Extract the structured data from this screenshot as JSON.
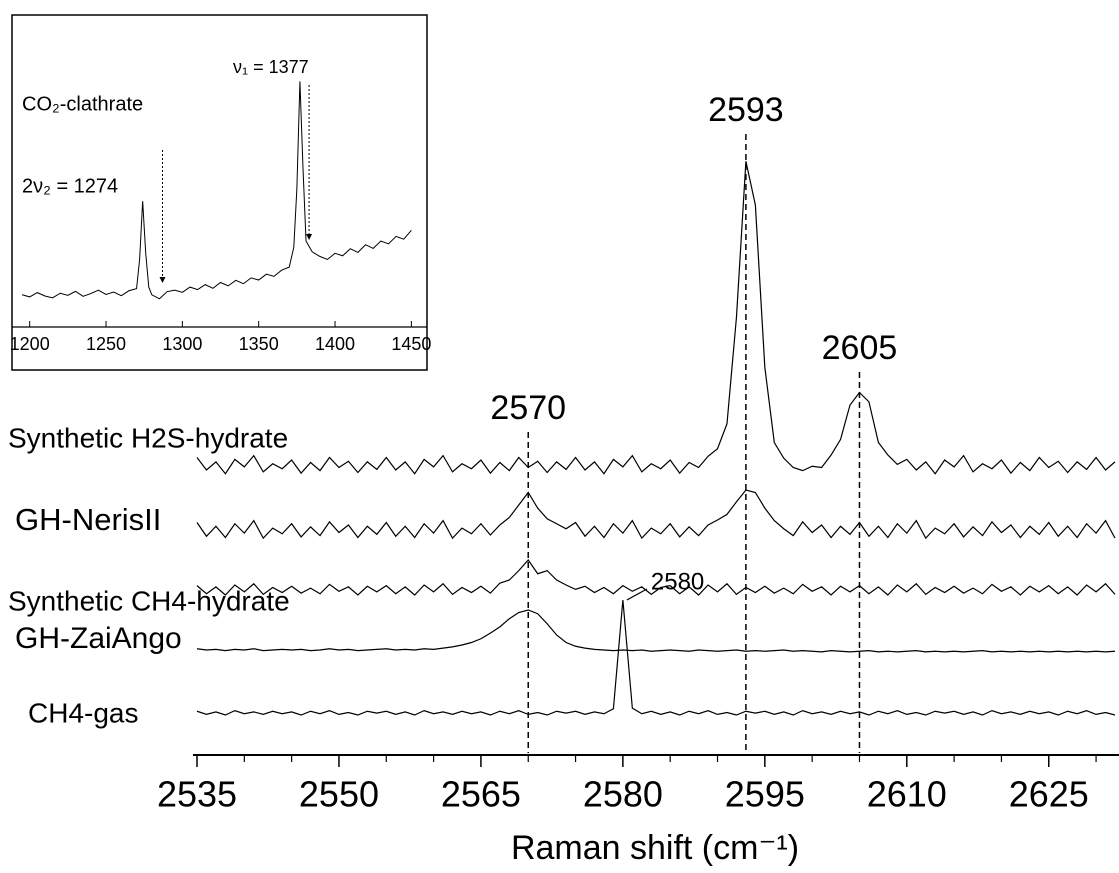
{
  "chart_data": [
    {
      "type": "line",
      "xlabel": "Raman shift (cm⁻¹)",
      "xlim": [
        2535,
        2632
      ],
      "ylim": [
        0,
        100
      ],
      "xticks": [
        2535,
        2550,
        2565,
        2580,
        2595,
        2610,
        2625
      ],
      "xminorticks": [
        2540,
        2545,
        2555,
        2560,
        2570,
        2575,
        2585,
        2590,
        2600,
        2605,
        2615,
        2620,
        2630
      ],
      "x": [
        2535,
        2536,
        2537,
        2538,
        2539,
        2540,
        2541,
        2542,
        2543,
        2544,
        2545,
        2546,
        2547,
        2548,
        2549,
        2550,
        2551,
        2552,
        2553,
        2554,
        2555,
        2556,
        2557,
        2558,
        2559,
        2560,
        2561,
        2562,
        2563,
        2564,
        2565,
        2566,
        2567,
        2568,
        2569,
        2570,
        2571,
        2572,
        2573,
        2574,
        2575,
        2576,
        2577,
        2578,
        2579,
        2580,
        2581,
        2582,
        2583,
        2584,
        2585,
        2586,
        2587,
        2588,
        2589,
        2590,
        2591,
        2592,
        2593,
        2594,
        2595,
        2596,
        2597,
        2598,
        2599,
        2600,
        2601,
        2602,
        2603,
        2604,
        2605,
        2606,
        2607,
        2608,
        2609,
        2610,
        2611,
        2612,
        2613,
        2614,
        2615,
        2616,
        2617,
        2618,
        2619,
        2620,
        2621,
        2622,
        2623,
        2624,
        2625,
        2626,
        2627,
        2628,
        2629,
        2630,
        2631,
        2632
      ],
      "series": [
        {
          "name": "Synthetic H2S-hydrate",
          "color": "#000000",
          "values": [
            47.6,
            45.6,
            46.9,
            45.0,
            47.3,
            46.1,
            47.9,
            45.3,
            46.6,
            45.8,
            47.2,
            45.1,
            46.8,
            45.5,
            47.6,
            46.0,
            47.0,
            45.2,
            46.9,
            45.7,
            47.6,
            45.6,
            46.9,
            45.0,
            47.3,
            46.1,
            47.9,
            45.3,
            46.6,
            45.8,
            47.2,
            45.1,
            46.8,
            45.5,
            47.6,
            46.0,
            47.0,
            45.2,
            46.9,
            45.7,
            47.6,
            45.6,
            46.9,
            45.0,
            47.3,
            46.1,
            47.9,
            45.3,
            46.6,
            45.8,
            47.2,
            45.1,
            46.8,
            46.0,
            47.8,
            49.0,
            53.0,
            70.0,
            95.0,
            88.0,
            62.0,
            50.0,
            47.5,
            46.0,
            45.5,
            46.2,
            46.0,
            48.0,
            50.5,
            56.0,
            58.0,
            56.5,
            50.0,
            48.0,
            46.5,
            47.3,
            45.6,
            46.9,
            45.0,
            47.2,
            46.1,
            47.9,
            45.3,
            46.6,
            45.8,
            47.2,
            45.1,
            46.8,
            45.5,
            47.6,
            46.0,
            47.0,
            45.2,
            46.9,
            45.7,
            47.6,
            45.6,
            46.9
          ]
        },
        {
          "name": "GH-NerisII",
          "color": "#000000",
          "values": [
            37.2,
            35.0,
            36.6,
            34.8,
            37.0,
            35.5,
            37.5,
            34.7,
            36.3,
            35.4,
            37.0,
            34.9,
            36.5,
            35.1,
            37.3,
            35.6,
            36.8,
            34.8,
            36.6,
            35.3,
            37.2,
            35.0,
            36.6,
            34.8,
            37.0,
            35.5,
            37.5,
            34.7,
            36.3,
            35.4,
            37.0,
            35.2,
            36.8,
            38.0,
            40.0,
            42.0,
            39.5,
            37.8,
            37.0,
            36.2,
            37.2,
            35.0,
            36.6,
            34.8,
            37.0,
            35.5,
            37.5,
            34.7,
            36.3,
            35.4,
            37.0,
            34.9,
            36.5,
            35.1,
            36.8,
            37.6,
            38.5,
            40.5,
            42.4,
            42.0,
            39.5,
            37.5,
            36.2,
            35.1,
            37.3,
            35.6,
            36.8,
            34.8,
            36.6,
            35.3,
            37.2,
            35.0,
            36.6,
            34.8,
            37.0,
            35.5,
            37.5,
            34.7,
            36.3,
            35.4,
            37.0,
            34.9,
            36.5,
            35.1,
            37.3,
            35.6,
            36.8,
            34.8,
            36.6,
            35.3,
            37.2,
            35.0,
            36.6,
            34.8,
            37.0,
            35.5,
            37.5,
            34.7
          ]
        },
        {
          "name": "Synthetic CH4-hydrate",
          "color": "#000000",
          "values": [
            27.1,
            25.8,
            26.9,
            25.6,
            27.2,
            26.1,
            27.4,
            25.7,
            26.8,
            26.0,
            27.0,
            25.9,
            26.7,
            25.8,
            27.3,
            26.2,
            26.9,
            25.6,
            27.0,
            26.1,
            27.1,
            25.8,
            26.9,
            25.6,
            27.2,
            26.1,
            27.4,
            25.7,
            26.8,
            26.0,
            27.0,
            25.9,
            27.5,
            28.0,
            29.5,
            31.2,
            29.0,
            29.5,
            28.0,
            27.2,
            26.5,
            27.0,
            26.0,
            26.8,
            25.8,
            27.1,
            26.2,
            26.9,
            25.7,
            26.8,
            27.1,
            25.8,
            26.9,
            25.6,
            27.2,
            26.1,
            27.4,
            25.7,
            26.8,
            26.0,
            27.0,
            25.9,
            26.7,
            25.8,
            27.3,
            26.2,
            26.9,
            25.6,
            27.0,
            26.1,
            27.1,
            25.8,
            26.9,
            25.6,
            27.2,
            26.1,
            27.4,
            25.7,
            26.8,
            26.0,
            27.0,
            25.9,
            26.7,
            25.8,
            27.3,
            26.2,
            26.9,
            25.6,
            27.0,
            26.1,
            27.1,
            25.8,
            26.9,
            25.6,
            27.2,
            26.1,
            27.4,
            25.7
          ]
        },
        {
          "name": "GH-ZaiAngo",
          "color": "#000000",
          "values": [
            17.0,
            16.8,
            16.9,
            16.7,
            16.9,
            16.8,
            17.0,
            16.7,
            16.8,
            16.9,
            16.8,
            16.9,
            16.7,
            16.8,
            17.0,
            16.8,
            16.9,
            16.7,
            16.8,
            16.9,
            17.0,
            16.8,
            16.9,
            16.8,
            17.0,
            16.9,
            17.1,
            17.3,
            17.6,
            18.0,
            18.6,
            19.5,
            20.5,
            21.8,
            22.8,
            23.2,
            22.6,
            21.0,
            19.2,
            18.0,
            17.4,
            17.1,
            16.9,
            16.8,
            16.7,
            16.8,
            16.7,
            16.8,
            16.6,
            16.7,
            16.8,
            16.7,
            16.6,
            16.8,
            16.7,
            16.6,
            16.7,
            16.8,
            16.6,
            16.7,
            16.6,
            16.7,
            16.8,
            16.6,
            16.7,
            16.6,
            16.5,
            16.7,
            16.6,
            16.5,
            16.6,
            16.7,
            16.5,
            16.6,
            16.5,
            16.6,
            16.7,
            16.5,
            16.6,
            16.5,
            16.6,
            16.5,
            16.6,
            16.7,
            16.5,
            16.6,
            16.5,
            16.6,
            16.5,
            16.6,
            16.5,
            16.6,
            16.5,
            16.6,
            16.5,
            16.6,
            16.5,
            16.6
          ]
        },
        {
          "name": "CH4-gas",
          "color": "#000000",
          "values": [
            7.0,
            6.5,
            6.9,
            6.4,
            7.1,
            6.6,
            6.9,
            6.5,
            7.0,
            6.6,
            6.9,
            6.4,
            7.0,
            6.6,
            7.1,
            6.5,
            6.8,
            6.4,
            7.0,
            6.7,
            7.0,
            6.5,
            6.9,
            6.4,
            7.1,
            6.6,
            6.9,
            6.5,
            7.0,
            6.6,
            6.9,
            6.4,
            7.0,
            6.6,
            7.1,
            6.5,
            6.8,
            6.4,
            7.0,
            6.7,
            7.0,
            6.5,
            6.9,
            6.6,
            7.4,
            24.8,
            7.5,
            6.6,
            7.0,
            6.5,
            6.9,
            6.4,
            7.0,
            6.6,
            7.1,
            6.5,
            6.8,
            6.4,
            7.0,
            6.7,
            7.0,
            6.5,
            6.9,
            6.4,
            7.1,
            6.6,
            6.9,
            6.5,
            7.0,
            6.6,
            6.9,
            6.4,
            7.0,
            6.6,
            7.1,
            6.5,
            6.8,
            6.4,
            7.0,
            6.7,
            7.0,
            6.5,
            6.9,
            6.4,
            7.1,
            6.6,
            6.9,
            6.5,
            7.0,
            6.6,
            6.9,
            6.4,
            7.0,
            6.6,
            7.1,
            6.5,
            6.8,
            6.4
          ]
        }
      ],
      "peak_labels": [
        {
          "value": 2570,
          "style": "dashed"
        },
        {
          "value": 2593,
          "style": "dashed"
        },
        {
          "value": 2605,
          "style": "dashed"
        },
        {
          "value": 2580,
          "style": "leader"
        }
      ]
    },
    {
      "type": "line",
      "inset": true,
      "xlim": [
        1193,
        1455
      ],
      "ylim": [
        0,
        100
      ],
      "xticks": [
        1200,
        1250,
        1300,
        1350,
        1400,
        1450
      ],
      "x": [
        1195,
        1200,
        1205,
        1210,
        1215,
        1220,
        1225,
        1230,
        1235,
        1240,
        1245,
        1250,
        1255,
        1260,
        1265,
        1270,
        1272,
        1274,
        1276,
        1278,
        1280,
        1285,
        1290,
        1295,
        1300,
        1305,
        1310,
        1315,
        1320,
        1325,
        1330,
        1335,
        1340,
        1345,
        1350,
        1355,
        1360,
        1365,
        1370,
        1373,
        1375,
        1377,
        1379,
        1381,
        1385,
        1390,
        1395,
        1400,
        1405,
        1410,
        1415,
        1420,
        1425,
        1430,
        1435,
        1440,
        1445,
        1450
      ],
      "series": [
        {
          "color": "#000000",
          "values": [
            10.5,
            9.8,
            11.2,
            10.1,
            9.5,
            11.0,
            10.3,
            11.6,
            10.0,
            10.9,
            12.0,
            10.6,
            11.4,
            10.2,
            11.8,
            12.5,
            22,
            41,
            24,
            13,
            10.5,
            9.2,
            11.5,
            12.0,
            11.3,
            13.0,
            12.2,
            13.8,
            12.6,
            14.5,
            13.4,
            15.2,
            14.1,
            16.0,
            15.3,
            17.2,
            16.5,
            18.5,
            19.5,
            26,
            45,
            80,
            52,
            28,
            24.5,
            23.0,
            22.0,
            24.0,
            23.2,
            25.5,
            24.3,
            26.8,
            25.6,
            28.0,
            27.1,
            29.5,
            28.6,
            31.5
          ]
        }
      ],
      "labels": [
        "ν₁ = 1377",
        "CO₂-clathrate",
        "2ν₂ = 1274"
      ],
      "arrows": [
        1287,
        1383
      ]
    }
  ]
}
